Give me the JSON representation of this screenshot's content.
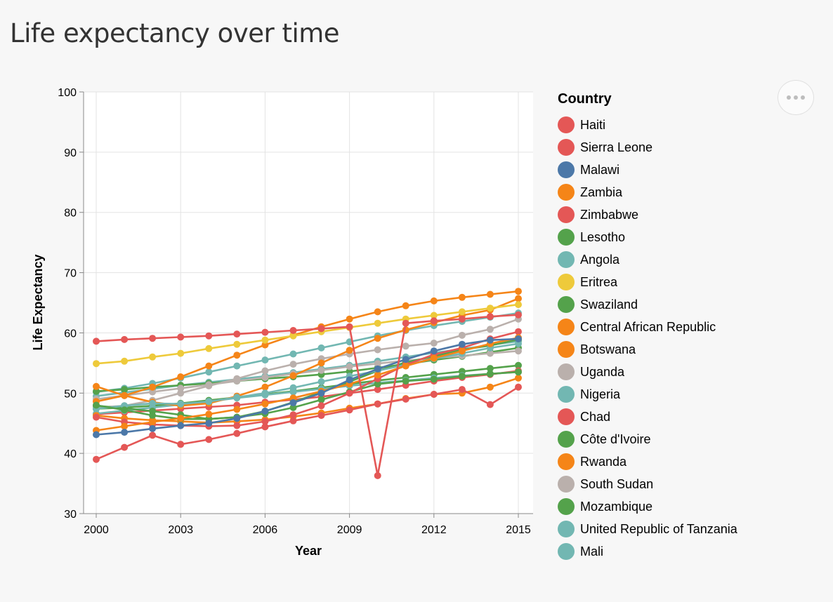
{
  "page": {
    "title": "Life expectancy over time"
  },
  "chart_data": {
    "type": "line",
    "xlabel": "Year",
    "ylabel": "Life Expectancy",
    "xlim": [
      2000,
      2015
    ],
    "ylim": [
      30,
      100
    ],
    "x_ticks": [
      2000,
      2003,
      2006,
      2009,
      2012,
      2015
    ],
    "y_ticks": [
      30,
      40,
      50,
      60,
      70,
      80,
      90,
      100
    ],
    "x": [
      2000,
      2001,
      2002,
      2003,
      2004,
      2005,
      2006,
      2007,
      2008,
      2009,
      2010,
      2011,
      2012,
      2013,
      2014,
      2015
    ],
    "grid": true,
    "point_markers": true,
    "legend": {
      "title": "Country",
      "position": "right"
    },
    "palette": [
      "#e45756",
      "#4c78a8",
      "#f58518",
      "#54a24b",
      "#72b7b2",
      "#eeca3b",
      "#b279a2",
      "#ff9da6",
      "#9d755d",
      "#bab0ac"
    ],
    "series": [
      {
        "name": "Haiti",
        "color": "#e45756",
        "values": [
          58.6,
          58.9,
          59.1,
          59.3,
          59.5,
          59.8,
          60.1,
          60.4,
          60.7,
          61.0,
          36.3,
          61.6,
          62.0,
          62.3,
          62.7,
          63.0
        ]
      },
      {
        "name": "Sierra Leone",
        "color": "#e45756",
        "values": [
          39.0,
          41.0,
          43.0,
          41.5,
          42.3,
          43.3,
          44.4,
          45.4,
          46.3,
          47.2,
          48.2,
          49.0,
          49.8,
          50.6,
          48.1,
          51.0
        ]
      },
      {
        "name": "Malawi",
        "color": "#4c78a8",
        "values": [
          43.1,
          43.5,
          44.1,
          44.6,
          45.0,
          45.8,
          47.0,
          48.4,
          50.0,
          52.2,
          54.0,
          55.6,
          57.0,
          58.1,
          58.8,
          59.0
        ]
      },
      {
        "name": "Zambia",
        "color": "#f58518",
        "values": [
          43.8,
          44.5,
          45.2,
          45.8,
          46.5,
          47.3,
          48.2,
          49.2,
          50.3,
          51.5,
          53.0,
          54.5,
          55.8,
          57.0,
          58.2,
          59.2
        ]
      },
      {
        "name": "Zimbabwe",
        "color": "#e45756",
        "values": [
          46.0,
          45.2,
          44.8,
          44.6,
          44.5,
          44.6,
          45.3,
          46.4,
          47.9,
          50.0,
          52.4,
          54.7,
          56.4,
          57.5,
          59.0,
          60.2
        ]
      },
      {
        "name": "Lesotho",
        "color": "#54a24b",
        "values": [
          48.0,
          47.2,
          46.3,
          45.7,
          45.7,
          46.0,
          46.6,
          47.6,
          48.9,
          50.2,
          51.5,
          52.0,
          52.3,
          52.8,
          53.2,
          53.5
        ]
      },
      {
        "name": "Angola",
        "color": "#72b7b2",
        "values": [
          47.4,
          47.9,
          48.3,
          48.2,
          48.6,
          49.3,
          50.0,
          50.9,
          51.9,
          52.8,
          53.7,
          54.7,
          55.7,
          56.6,
          57.5,
          58.2
        ]
      },
      {
        "name": "Eritrea",
        "color": "#eeca3b",
        "values": [
          54.9,
          55.3,
          56.0,
          56.6,
          57.4,
          58.1,
          58.8,
          59.5,
          60.2,
          60.9,
          61.6,
          62.3,
          62.9,
          63.5,
          64.1,
          64.7
        ]
      },
      {
        "name": "Swaziland",
        "color": "#54a24b",
        "values": [
          47.9,
          47.5,
          47.0,
          46.4,
          45.7,
          46.0,
          47.0,
          48.5,
          50.2,
          51.9,
          53.7,
          55.1,
          56.1,
          57.2,
          57.9,
          58.9
        ]
      },
      {
        "name": "Central African Republic",
        "color": "#f58518",
        "values": [
          46.3,
          45.8,
          45.5,
          45.3,
          45.1,
          45.3,
          45.6,
          46.1,
          46.7,
          47.5,
          48.2,
          49.1,
          49.8,
          50.0,
          51.0,
          52.5
        ]
      },
      {
        "name": "Botswana",
        "color": "#f58518",
        "values": [
          51.1,
          49.6,
          48.5,
          47.9,
          48.3,
          49.5,
          51.0,
          52.9,
          55.0,
          57.1,
          59.1,
          60.5,
          61.7,
          62.9,
          63.8,
          65.7
        ]
      },
      {
        "name": "Uganda",
        "color": "#bab0ac",
        "values": [
          47.6,
          47.9,
          48.8,
          50.0,
          51.2,
          52.4,
          53.7,
          54.8,
          55.7,
          56.5,
          57.2,
          57.8,
          58.3,
          59.6,
          60.6,
          62.3
        ]
      },
      {
        "name": "Nigeria",
        "color": "#72b7b2",
        "values": [
          46.6,
          47.1,
          47.6,
          48.1,
          48.6,
          49.2,
          49.7,
          50.2,
          50.7,
          51.2,
          51.7,
          52.1,
          52.5,
          52.9,
          53.2,
          53.5
        ]
      },
      {
        "name": "Chad",
        "color": "#e45756",
        "values": [
          46.5,
          46.8,
          47.1,
          47.4,
          47.7,
          48.0,
          48.5,
          48.9,
          49.4,
          50.0,
          50.6,
          51.3,
          52.0,
          52.6,
          53.1,
          53.7
        ]
      },
      {
        "name": "Côte d'Ivoire",
        "color": "#54a24b",
        "values": [
          47.4,
          47.6,
          47.9,
          48.3,
          48.8,
          49.3,
          49.8,
          50.3,
          50.9,
          51.5,
          52.1,
          52.6,
          53.1,
          53.6,
          54.1,
          54.6
        ]
      },
      {
        "name": "Rwanda",
        "color": "#f58518",
        "values": [
          48.6,
          49.6,
          51.0,
          52.7,
          54.5,
          56.3,
          58.0,
          59.6,
          61.0,
          62.3,
          63.5,
          64.5,
          65.3,
          65.9,
          66.4,
          66.9
        ]
      },
      {
        "name": "South Sudan",
        "color": "#bab0ac",
        "values": [
          49.0,
          49.6,
          50.2,
          50.8,
          51.4,
          52.0,
          52.6,
          53.2,
          53.8,
          54.4,
          54.9,
          55.4,
          55.8,
          56.2,
          56.6,
          57.0
        ]
      },
      {
        "name": "Mozambique",
        "color": "#54a24b",
        "values": [
          50.3,
          50.6,
          51.0,
          51.3,
          51.6,
          52.0,
          52.4,
          52.7,
          53.1,
          53.6,
          54.2,
          54.8,
          55.5,
          56.1,
          56.8,
          57.5
        ]
      },
      {
        "name": "United Republic of Tanzania",
        "color": "#72b7b2",
        "values": [
          50.2,
          50.8,
          51.6,
          52.5,
          53.5,
          54.5,
          55.5,
          56.5,
          57.5,
          58.5,
          59.5,
          60.4,
          61.2,
          61.9,
          62.6,
          63.3
        ]
      },
      {
        "name": "Mali",
        "color": "#72b7b2",
        "values": [
          49.5,
          50.1,
          50.7,
          51.3,
          51.8,
          52.3,
          52.8,
          53.4,
          54.0,
          54.6,
          55.3,
          56.0,
          56.7,
          57.3,
          58.0,
          58.6
        ]
      }
    ]
  }
}
